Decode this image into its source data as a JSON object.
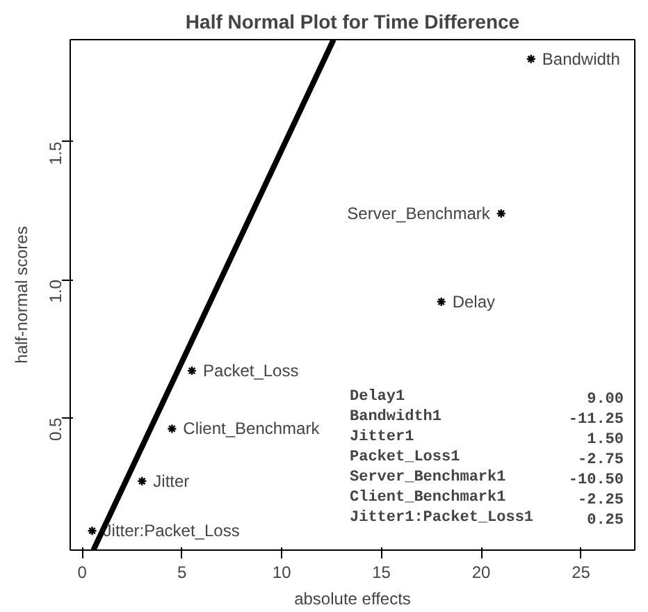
{
  "chart_data": {
    "type": "scatter",
    "title": "Half Normal Plot for Time Difference",
    "xlabel": "absolute effects",
    "ylabel": "half-normal scores",
    "xlim": [
      -0.6,
      27.7
    ],
    "ylim": [
      0.02,
      1.87
    ],
    "xticks": [
      0,
      5,
      10,
      15,
      20,
      25
    ],
    "yticks": [
      0.5,
      {
        "value": 1,
        "label": "1.0"
      },
      1.5
    ],
    "grid": false,
    "series": [
      {
        "marker": "cross",
        "color": "#000000",
        "x": [
          18,
          22.5,
          3,
          5.5,
          21,
          4.5,
          0.5
        ],
        "values": [
          0.92,
          1.8,
          0.27,
          0.67,
          1.24,
          0.46,
          0.09
        ]
      },
      {
        "type": "line",
        "color": "#000000",
        "x": [
          0.56,
          12.6
        ],
        "values": [
          0.02,
          1.87
        ]
      }
    ],
    "annotations": [
      {
        "text": "Delay",
        "x": 18,
        "y": 0.92
      },
      {
        "text": "Bandwidth",
        "x": 22.5,
        "y": 1.8
      },
      {
        "text": "Jitter",
        "x": 3,
        "y": 0.27
      },
      {
        "text": "Packet_Loss",
        "x": 5.5,
        "y": 0.67
      },
      {
        "text": "Server_Benchmark",
        "x": 21,
        "y": 1.24
      },
      {
        "text": "Client_Benchmark",
        "x": 4.5,
        "y": 0.46
      },
      {
        "text": "Jitter:Packet_Loss",
        "x": 0.5,
        "y": 0.09
      },
      "Delay1                 9.00",
      "Bandwidth1           -11.25",
      "Jitter1                1.50",
      "Packet_Loss1          -2.75",
      "Server_Benchmark1     -10.50",
      "Client_Benchmark1     -2.25",
      "Jitter1:Packet_Loss1   0.25"
    ]
  }
}
